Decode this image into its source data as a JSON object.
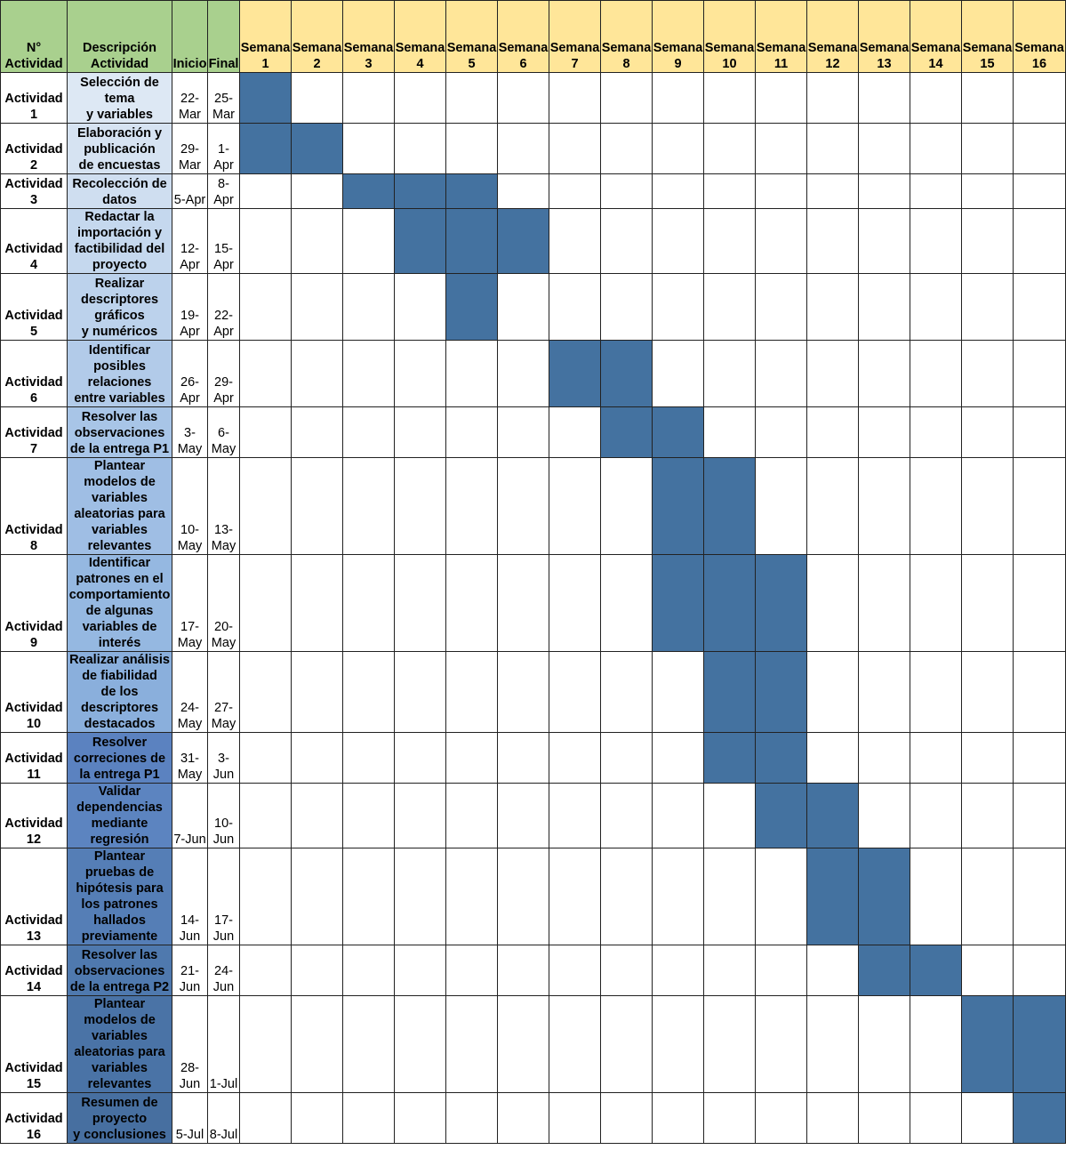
{
  "header": {
    "num": "N°\nActividad",
    "desc": "Descripción\nActividad",
    "start": "Inicio",
    "end": "Final",
    "weeks": [
      "Semana\n1",
      "Semana\n2",
      "Semana\n3",
      "Semana\n4",
      "Semana\n5",
      "Semana\n6",
      "Semana\n7",
      "Semana\n8",
      "Semana\n9",
      "Semana\n10",
      "Semana\n11",
      "Semana\n12",
      "Semana\n13",
      "Semana\n14",
      "Semana\n15",
      "Semana\n16"
    ]
  },
  "colors": {
    "bar": "#4472a0",
    "header_green": "#a9d08e",
    "header_yellow": "#ffe699"
  },
  "chart_data": {
    "type": "table",
    "rows": [
      {
        "id": "Actividad\n1",
        "desc": "Selección de\ntema\ny variables",
        "start": "22-\nMar",
        "end": "25-\nMar",
        "weeks": [
          1
        ],
        "shade": "#dde8f4"
      },
      {
        "id": "Actividad\n2",
        "desc": "Elaboración y\npublicación\nde encuestas",
        "start": "29-\nMar",
        "end": "1-\nApr",
        "weeks": [
          1,
          2
        ],
        "shade": "#d6e3f2"
      },
      {
        "id": "Actividad\n3",
        "desc": "Recolección de\ndatos",
        "start": "5-Apr",
        "end": "8-\nApr",
        "weeks": [
          3,
          4,
          5
        ],
        "shade": "#cfdef0"
      },
      {
        "id": "Actividad\n4",
        "desc": "Redactar la\nimportación y\nfactibilidad del\nproyecto",
        "start": "12-\nApr",
        "end": "15-\nApr",
        "weeks": [
          4,
          5,
          6
        ],
        "shade": "#c5d8ee"
      },
      {
        "id": "Actividad\n5",
        "desc": "Realizar\ndescriptores\ngráficos\ny numéricos",
        "start": "19-\nApr",
        "end": "22-\nApr",
        "weeks": [
          5
        ],
        "shade": "#bcd2ec"
      },
      {
        "id": "Actividad\n6",
        "desc": "Identificar\nposibles\nrelaciones\nentre variables",
        "start": "26-\nApr",
        "end": "29-\nApr",
        "weeks": [
          7,
          8
        ],
        "shade": "#b2cbe9"
      },
      {
        "id": "Actividad\n7",
        "desc": "Resolver las\nobservaciones\nde la entrega P1",
        "start": "3-\nMay",
        "end": "6-\nMay",
        "weeks": [
          8,
          9
        ],
        "shade": "#a8c5e7"
      },
      {
        "id": "Actividad\n8",
        "desc": "Plantear\nmodelos de\nvariables\naleatorias para\nvariables\nrelevantes",
        "start": "10-\nMay",
        "end": "13-\nMay",
        "weeks": [
          9,
          10
        ],
        "shade": "#9fbee4"
      },
      {
        "id": "Actividad\n9",
        "desc": "Identificar\npatrones en el\ncomportamiento\nde algunas\nvariables de\ninterés",
        "start": "17-\nMay",
        "end": "20-\nMay",
        "weeks": [
          9,
          10,
          11
        ],
        "shade": "#95b8e1"
      },
      {
        "id": "Actividad\n10",
        "desc": "Realizar análisis\nde fiabilidad\nde los\ndescriptores\ndestacados",
        "start": "24-\nMay",
        "end": "27-\nMay",
        "weeks": [
          10,
          11
        ],
        "shade": "#8aafdc"
      },
      {
        "id": "Actividad\n11",
        "desc": "Resolver\ncorreciones de\nla entrega P1",
        "start": "31-\nMay",
        "end": "3-\nJun",
        "weeks": [
          10,
          11
        ],
        "shade": "#5b82c0"
      },
      {
        "id": "Actividad\n12",
        "desc": "Validar\ndependencias\nmediante\nregresión",
        "start": "7-Jun",
        "end": "10-\nJun",
        "weeks": [
          11,
          12
        ],
        "shade": "#5c84c0"
      },
      {
        "id": "Actividad\n13",
        "desc": "Plantear\npruebas de\nhipótesis para\nlos patrones\nhallados\npreviamente",
        "start": "14-\nJun",
        "end": "17-\nJun",
        "weeks": [
          12,
          13
        ],
        "shade": "#557eb6"
      },
      {
        "id": "Actividad\n14",
        "desc": "Resolver las\nobservaciones\nde la entrega P2",
        "start": "21-\nJun",
        "end": "24-\nJun",
        "weeks": [
          13,
          14
        ],
        "shade": "#4f79ae"
      },
      {
        "id": "Actividad\n15",
        "desc": "Plantear\nmodelos de\nvariables\naleatorias para\nvariables\nrelevantes",
        "start": "28-\nJun",
        "end": "1-Jul",
        "weeks": [
          15,
          16
        ],
        "shade": "#4a73a6"
      },
      {
        "id": "Actividad\n16",
        "desc": "Resumen de\nproyecto\ny conclusiones",
        "start": "5-Jul",
        "end": "8-Jul",
        "weeks": [
          16
        ],
        "shade": "#476fa0"
      }
    ]
  }
}
